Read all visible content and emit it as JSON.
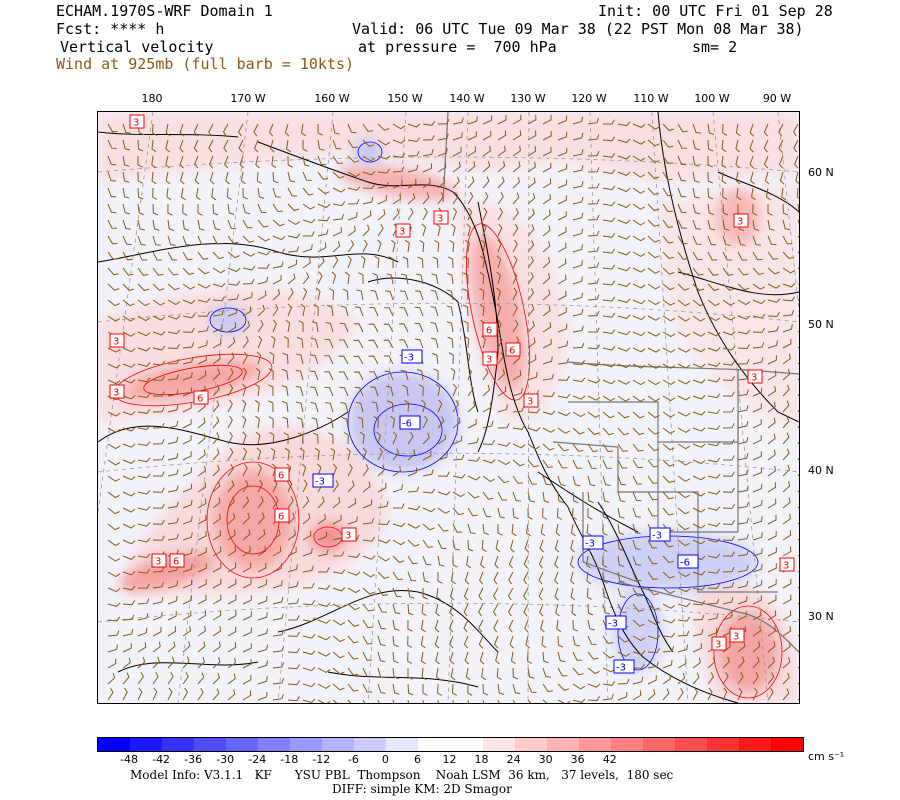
{
  "header": {
    "line1_left": "ECHAM.1970S-WRF Domain 1",
    "line1_right": "Init: 00 UTC Fri 01 Sep 28",
    "line2_left": "Fcst: **** h",
    "line2_right": "Valid: 06 UTC Tue 09 Mar 38 (22 PST Mon 08 Mar 38)",
    "line3_left": "Vertical velocity",
    "line3_mid": "at pressure =  700 hPa",
    "line3_right": "sm= 2",
    "line4_left": "Wind at 925mb (full barb = 10kts)"
  },
  "lon_labels": [
    "180",
    "170 W",
    "160 W",
    "150 W",
    "140 W",
    "130 W",
    "120 W",
    "110 W",
    "100 W",
    "90 W"
  ],
  "lat_labels": [
    "60 N",
    "50 N",
    "40 N",
    "30 N"
  ],
  "contour_labels_pos": [
    "3",
    "3",
    "3",
    "3",
    "3",
    "6",
    "3",
    "6",
    "3",
    "3",
    "6",
    "3",
    "6",
    "3",
    "6",
    "3",
    "3",
    "3",
    "6",
    "3"
  ],
  "contour_labels_neg": [
    "-3",
    "-6",
    "-3",
    "-3",
    "-3",
    "-6",
    "-3",
    "-3"
  ],
  "colorbar": {
    "labels": [
      "-48",
      "-42",
      "-36",
      "-30",
      "-24",
      "-18",
      "-12",
      "-6",
      "0",
      "6",
      "12",
      "18",
      "24",
      "30",
      "36",
      "42"
    ],
    "units": "cm s⁻¹",
    "colors": [
      "#0000ff",
      "#1a1aff",
      "#3333ff",
      "#4d4dff",
      "#6666ff",
      "#8080ff",
      "#9999ff",
      "#b3b3ff",
      "#ccccff",
      "#e6e6ff",
      "#ffffff",
      "#ffffff",
      "#ffe6e6",
      "#ffcccc",
      "#ffb3b3",
      "#ff9999",
      "#ff8080",
      "#ff6666",
      "#ff4d4d",
      "#ff3333",
      "#ff1a1a",
      "#ff0000"
    ]
  },
  "footer": {
    "line1": "Model Info: V3.1.1   KF      YSU PBL  Thompson    Noah LSM  36 km,   37 levels,  180 sec",
    "line2": "DIFF: simple KM: 2D Smagor"
  },
  "colors": {
    "pos_fill": "#f9c8c8",
    "neg_fill": "#c8c8f4",
    "barb": "#8b5a14",
    "pos_line": "#ff0000",
    "neg_line": "#0000ff"
  }
}
